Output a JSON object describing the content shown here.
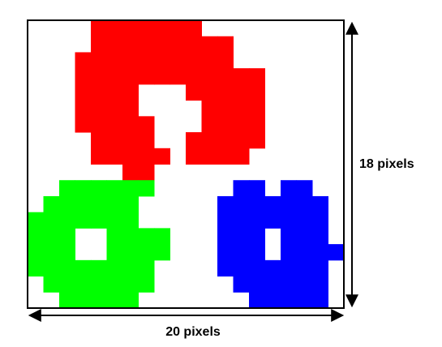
{
  "grid": {
    "columns": 20,
    "rows": 18,
    "background": "#ffffff",
    "border_color": "#000000"
  },
  "labels": {
    "width": "20 pixels",
    "height": "18 pixels"
  },
  "colors": {
    "red": "#ff0000",
    "green": "#00ff00",
    "blue": "#0000ff"
  },
  "pixels": {
    "rows": [
      "....RRRRRRR.........",
      "....RRRRRRRRR.......",
      "...RRRRRRRRRR.......",
      "...RRRRRRRRRRRR.....",
      "...RRRR...RRRRR.....",
      "...RRRR....RRRR.....",
      "...RRRRR...RRRR.....",
      "....RRRR..RRRRR.....",
      "....RRRRR.RRRR......",
      "......RR............",
      "..GGGGGG.....BB.BB..",
      ".GGGGGG.....BBBBBBB.",
      "GGGGGGG.....BBBBBBB.",
      "GGG..GGGG...BBB.BBB.",
      "GGG..GGGG...BBB.BBBB",
      "GGGGGGGG....BBBBBBB.",
      ".GGGGGGG.....BBBBBB.",
      "..GGGGG.......BBBBB."
    ]
  }
}
